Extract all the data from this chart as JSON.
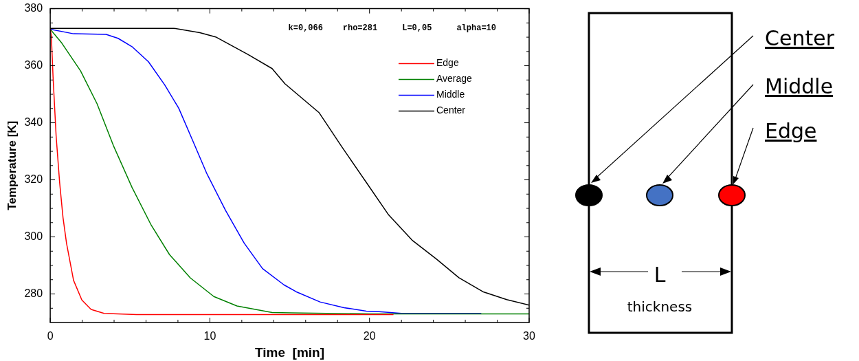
{
  "chart_data": {
    "type": "line",
    "xlabel": "Time  [min]",
    "ylabel": "Temperature [K]",
    "annotations": [
      "k=0,066    rho=281     L=0,05     alpha=10",
      "Center",
      "Middle",
      "Edge",
      "L",
      "thickness"
    ],
    "xlim": [
      0,
      30
    ],
    "ylim": [
      270,
      380
    ],
    "xticks": [
      0,
      {
        "value": 2,
        "label": null
      },
      {
        "value": 4,
        "label": null
      },
      {
        "value": 6,
        "label": null
      },
      {
        "value": 8,
        "label": null
      },
      10,
      {
        "value": 12,
        "label": null
      },
      {
        "value": 14,
        "label": null
      },
      {
        "value": 16,
        "label": null
      },
      {
        "value": 18,
        "label": null
      },
      20,
      {
        "value": 22,
        "label": null
      },
      {
        "value": 24,
        "label": null
      },
      {
        "value": 26,
        "label": null
      },
      {
        "value": 28,
        "label": null
      },
      30
    ],
    "yticks": [
      {
        "value": 275,
        "label": null
      },
      280,
      {
        "value": 285,
        "label": null
      },
      {
        "value": 290,
        "label": null
      },
      {
        "value": 295,
        "label": null
      },
      300,
      {
        "value": 305,
        "label": null
      },
      {
        "value": 310,
        "label": null
      },
      {
        "value": 315,
        "label": null
      },
      320,
      {
        "value": 325,
        "label": null
      },
      {
        "value": 330,
        "label": null
      },
      {
        "value": 335,
        "label": null
      },
      340,
      {
        "value": 345,
        "label": null
      },
      {
        "value": 350,
        "label": null
      },
      {
        "value": 355,
        "label": null
      },
      360,
      {
        "value": 365,
        "label": null
      },
      {
        "value": 370,
        "label": null
      },
      {
        "value": 375,
        "label": null
      },
      380
    ],
    "grid": false,
    "legend": "top right",
    "marker": "none",
    "line_style": "solid",
    "series": [
      {
        "name": "Edge",
        "color": "#ff0000",
        "x": [
          0,
          0.07,
          0.18,
          0.37,
          0.59,
          0.8,
          1.02,
          1.46,
          1.98,
          2.56,
          3.37,
          5.4,
          10,
          15,
          21.5
        ],
        "values": [
          373,
          370.4,
          355.7,
          335.3,
          319,
          306.8,
          297.8,
          284.8,
          277.9,
          274.6,
          273.2,
          272.8,
          272.8,
          272.8,
          272.8
        ]
      },
      {
        "name": "Average",
        "color": "#008000",
        "x": [
          0,
          0.73,
          1.9,
          2.93,
          3.95,
          5.12,
          6.3,
          7.47,
          8.78,
          10.25,
          11.7,
          13.9,
          15.1,
          20,
          25,
          30
        ],
        "values": [
          372.8,
          367.9,
          358.2,
          346.7,
          332.1,
          317.4,
          304.4,
          293.8,
          285.6,
          279.1,
          275.8,
          273.5,
          273.4,
          273,
          273,
          273
        ]
      },
      {
        "name": "Middle",
        "color": "#0000ff",
        "x": [
          0,
          1.46,
          3.5,
          4.25,
          5.12,
          6.15,
          7.17,
          8.05,
          8.93,
          9.8,
          10.98,
          12.15,
          13.3,
          14.64,
          15.4,
          16.9,
          18.4,
          19.8,
          20.6,
          22,
          27
        ],
        "values": [
          372.8,
          371.2,
          371,
          369.6,
          366.7,
          361.4,
          353.3,
          345.1,
          333.7,
          322.3,
          309.3,
          297.8,
          288.9,
          283.2,
          280.8,
          277.2,
          275.2,
          274,
          273.8,
          273.2,
          273.2
        ]
      },
      {
        "name": "Center",
        "color": "#000000",
        "x": [
          0,
          4,
          7.76,
          9.37,
          10.4,
          12.4,
          13.9,
          14.7,
          16.85,
          18.3,
          19.8,
          21.2,
          22.7,
          24.2,
          25.6,
          27.1,
          28.6,
          30
        ],
        "values": [
          373.1,
          373.1,
          373.1,
          371.6,
          370,
          363.9,
          359,
          353.7,
          343.5,
          331.3,
          319.1,
          307.7,
          298.7,
          292.2,
          285.7,
          280.8,
          278,
          276.1
        ]
      }
    ]
  }
}
